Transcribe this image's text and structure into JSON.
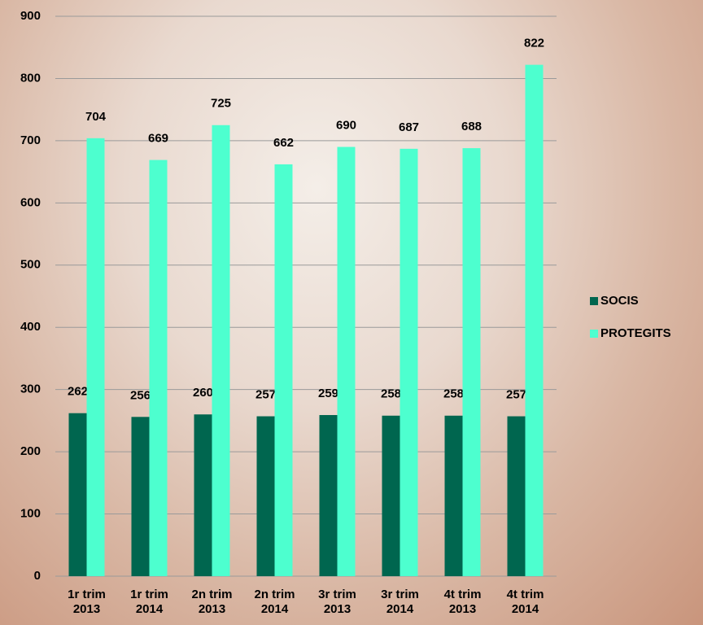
{
  "chart_data": {
    "type": "bar",
    "categories": [
      "1r trim 2013",
      "1r trim 2014",
      "2n trim 2013",
      "2n trim 2014",
      "3r trim 2013",
      "3r trim 2014",
      "4t trim 2013",
      "4t trim 2014"
    ],
    "series": [
      {
        "name": "SOCIS",
        "color": "#00664f",
        "values": [
          262,
          256,
          260,
          257,
          259,
          258,
          258,
          257
        ]
      },
      {
        "name": "PROTEGITS",
        "color": "#4dffcf",
        "values": [
          704,
          669,
          725,
          662,
          690,
          687,
          688,
          822
        ]
      }
    ],
    "ylim": [
      0,
      900
    ],
    "yticks": [
      0,
      100,
      200,
      300,
      400,
      500,
      600,
      700,
      800,
      900
    ],
    "grid": true,
    "legend": "right"
  }
}
